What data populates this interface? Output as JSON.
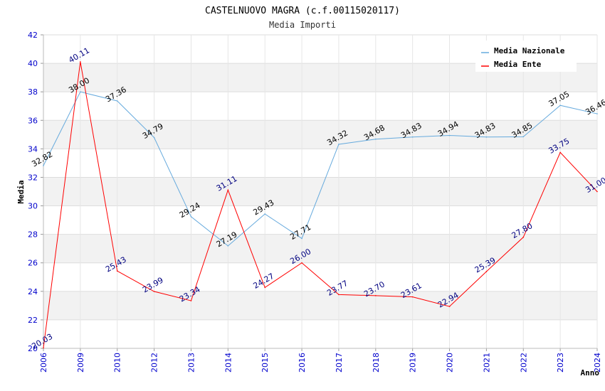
{
  "chart_data": {
    "type": "line",
    "title": "CASTELNUOVO MAGRA (c.f.00115020117)",
    "subtitle": "Media Importi",
    "xlabel": "Anno",
    "ylabel": "Media",
    "ylim": [
      20,
      42
    ],
    "yticks": [
      20,
      22,
      24,
      26,
      28,
      30,
      32,
      34,
      36,
      38,
      40,
      42
    ],
    "categories": [
      "2006",
      "2009",
      "2010",
      "2012",
      "2013",
      "2014",
      "2015",
      "2016",
      "2017",
      "2018",
      "2019",
      "2020",
      "2021",
      "2022",
      "2023",
      "2024"
    ],
    "series": [
      {
        "name": "Media Nazionale",
        "color": "#66aadd",
        "values": [
          32.82,
          38.0,
          37.36,
          34.79,
          29.24,
          27.19,
          29.43,
          27.71,
          34.32,
          34.68,
          34.83,
          34.94,
          34.83,
          34.85,
          37.05,
          36.46
        ],
        "labels": [
          "32.82",
          "38.00",
          "37.36",
          "34.79",
          "29.24",
          "27.19",
          "29.43",
          "27.71",
          "34.32",
          "34.68",
          "34.83",
          "34.94",
          "34.83",
          "34.85",
          "37.05",
          "36.46"
        ]
      },
      {
        "name": "Media Ente",
        "color": "#ff0000",
        "values": [
          20.03,
          40.11,
          25.43,
          23.99,
          23.34,
          31.11,
          24.27,
          26.0,
          23.77,
          23.7,
          23.61,
          22.94,
          25.39,
          27.8,
          33.75,
          31.0
        ],
        "labels": [
          "20.03",
          "40.11",
          "25.43",
          "23.99",
          "23.34",
          "31.11",
          "24.27",
          "26.00",
          "23.77",
          "23.70",
          "23.61",
          "22.94",
          "25.39",
          "27.80",
          "33.75",
          "31.00"
        ]
      }
    ],
    "legend_position": "top-right",
    "grid": true
  }
}
